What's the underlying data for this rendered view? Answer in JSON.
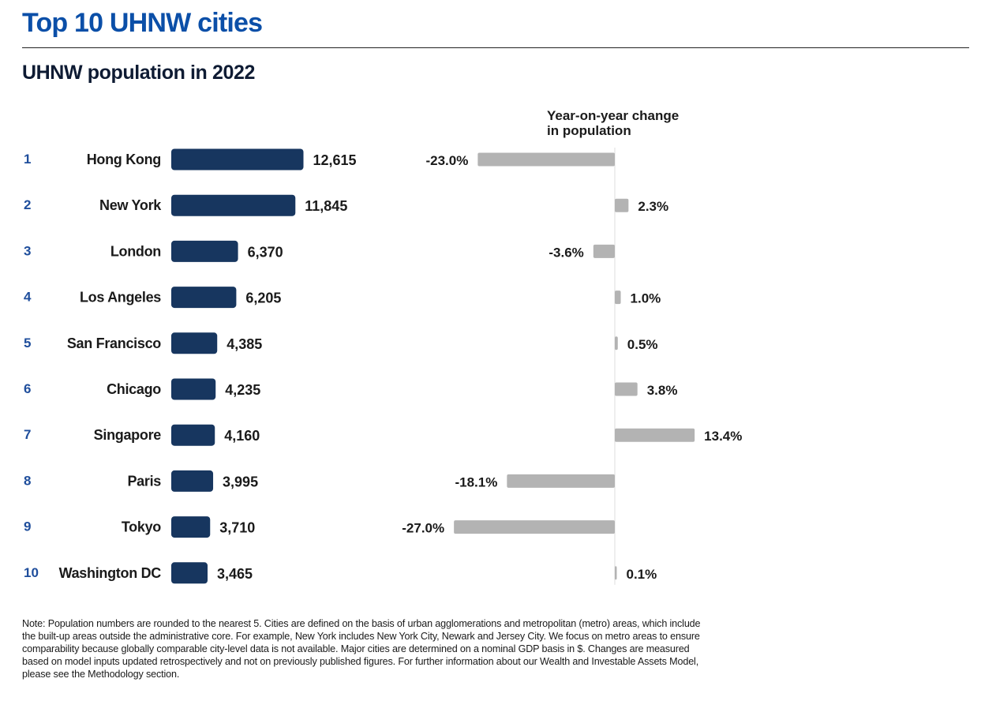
{
  "header": {
    "title": "Top 10 UHNW cities",
    "subtitle": "UHNW population in 2022",
    "yoy_title_line1": "Year-on-year change",
    "yoy_title_line2": "in population"
  },
  "colors": {
    "title": "#0b4fa8",
    "rank": "#1f4e9c",
    "population_bar": "#17365f",
    "yoy_bar": "#b3b3b3",
    "axis": "#dcdcdc",
    "text": "#1a1a1a"
  },
  "chart_data": {
    "type": "bar",
    "orientation": "horizontal",
    "title": "UHNW population in 2022",
    "categories": [
      "Hong Kong",
      "New York",
      "London",
      "Los Angeles",
      "San Francisco",
      "Chicago",
      "Singapore",
      "Paris",
      "Tokyo",
      "Washington DC"
    ],
    "ranks": [
      "1",
      "2",
      "3",
      "4",
      "5",
      "6",
      "7",
      "8",
      "9",
      "10"
    ],
    "series": [
      {
        "name": "UHNW population in 2022",
        "values": [
          12615,
          11845,
          6370,
          6205,
          4385,
          4235,
          4160,
          3995,
          3710,
          3465
        ],
        "labels": [
          "12,615",
          "11,845",
          "6,370",
          "6,205",
          "4,385",
          "4,235",
          "4,160",
          "3,995",
          "3,710",
          "3,465"
        ]
      },
      {
        "name": "Year-on-year change in population",
        "unit": "%",
        "values": [
          -23.0,
          2.3,
          -3.6,
          1.0,
          0.5,
          3.8,
          13.4,
          -18.1,
          -27.0,
          0.1
        ],
        "labels": [
          "-23.0%",
          "2.3%",
          "-3.6%",
          "1.0%",
          "0.5%",
          "3.8%",
          "13.4%",
          "-18.1%",
          "-27.0%",
          "0.1%"
        ]
      }
    ],
    "xlabel": "",
    "ylabel": "",
    "grid": false,
    "legend": "none"
  },
  "note": "Note: Population numbers are rounded to the nearest 5. Cities are defined on the basis of urban agglomerations and metropolitan (metro) areas, which include the built-up areas outside the administrative core. For example, New York includes New York City, Newark and Jersey City. We focus on metro areas to ensure comparability because globally comparable city-level data is not available. Major cities are determined on a nominal GDP basis in $. Changes are measured based on model inputs updated retrospectively and not on previously published figures. For further information about our Wealth and Investable Assets Model, please see the Methodology section."
}
